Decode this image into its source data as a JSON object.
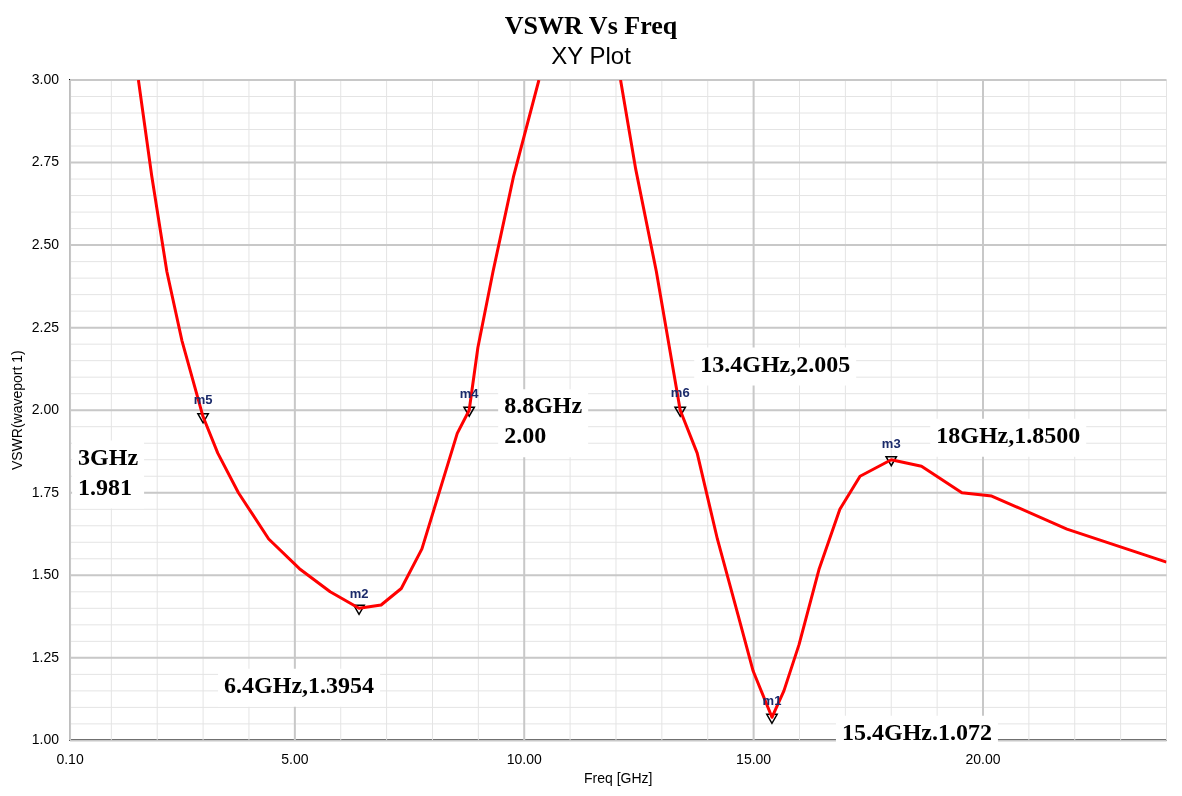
{
  "chart_data": {
    "type": "line",
    "title": "VSWR Vs Freq",
    "subtitle": "XY Plot",
    "xlabel": "Freq [GHz]",
    "ylabel": "VSWR(waveport 1)",
    "xlim": [
      0.1,
      24
    ],
    "xticks": [
      {
        "value": 0.1,
        "label": "0.10"
      },
      {
        "value": 5,
        "label": "5.00"
      },
      {
        "value": 10,
        "label": "10.00"
      },
      {
        "value": 15,
        "label": "15.00"
      },
      {
        "value": 20,
        "label": "20.00"
      }
    ],
    "ylim": [
      1,
      3
    ],
    "yticks": [
      {
        "value": 1,
        "label": "1.00"
      },
      {
        "value": 1.25,
        "label": "1.25"
      },
      {
        "value": 1.5,
        "label": "1.50"
      },
      {
        "value": 1.75,
        "label": "1.75"
      },
      {
        "value": 2,
        "label": "2.00"
      },
      {
        "value": 2.25,
        "label": "2.25"
      },
      {
        "value": 2.5,
        "label": "2.50"
      },
      {
        "value": 2.75,
        "label": "2.75"
      },
      {
        "value": 3,
        "label": "3.00"
      }
    ],
    "grid": true,
    "legend": false,
    "marker": "none",
    "line_style": "solid",
    "series": [
      {
        "color": "#ff0000",
        "x": [
          1.59,
          1.88,
          2.21,
          2.54,
          3,
          3.32,
          3.77,
          4.43,
          5.1,
          5.77,
          6.4,
          6.88,
          7.32,
          7.77,
          8.21,
          8.54,
          8.8,
          8.99,
          9.32,
          9.77,
          10.32,
          11.2,
          12.1,
          12.43,
          12.88,
          13.4,
          13.77,
          14.21,
          14.66,
          14.99,
          15.4,
          15.66,
          15.99,
          16.43,
          16.88,
          17.32,
          18,
          18.66,
          19.54,
          20.19,
          21.83,
          24
        ],
        "values": [
          3,
          2.71,
          2.42,
          2.21,
          1.98,
          1.87,
          1.75,
          1.61,
          1.52,
          1.45,
          1.4,
          1.41,
          1.46,
          1.58,
          1.78,
          1.93,
          2.0,
          2.19,
          2.42,
          2.71,
          3,
          null,
          3,
          2.73,
          2.42,
          2.0,
          1.87,
          1.61,
          1.38,
          1.21,
          1.07,
          1.15,
          1.29,
          1.52,
          1.7,
          1.8,
          1.85,
          1.83,
          1.75,
          1.74,
          1.64,
          1.54
        ]
      },
      {
        "type": "scatter",
        "color": "#000000",
        "marker": "triangle",
        "x": [
          3,
          6.4,
          8.8,
          13.4,
          15.4,
          18
        ],
        "values": [
          1.98,
          1.4,
          2.0,
          2.0,
          1.07,
          1.85
        ]
      }
    ],
    "annotations": [
      {
        "text": "m5",
        "x": 3,
        "y": 1.981
      },
      {
        "text": "m2",
        "x": 6.4,
        "y": 1.3954
      },
      {
        "text": "m4",
        "x": 8.8,
        "y": 2.0
      },
      {
        "text": "m6",
        "x": 13.4,
        "y": 2.005
      },
      {
        "text": "m1",
        "x": 15.4,
        "y": 1.072
      },
      {
        "text": "m3",
        "x": 18,
        "y": 1.85
      },
      {
        "text": "3GHz\n1.981",
        "x": 3,
        "y": 1.981
      },
      {
        "text": "6.4GHz,1.3954",
        "x": 6.4,
        "y": 1.3954
      },
      {
        "text": "8.8GHz\n2.00",
        "x": 8.8,
        "y": 2.0
      },
      {
        "text": "13.4GHz,2.005",
        "x": 13.4,
        "y": 2.005
      },
      {
        "text": "15.4GHz.1.072",
        "x": 15.4,
        "y": 1.072
      },
      {
        "text": "18GHz,1.8500",
        "x": 18,
        "y": 1.85
      }
    ]
  }
}
